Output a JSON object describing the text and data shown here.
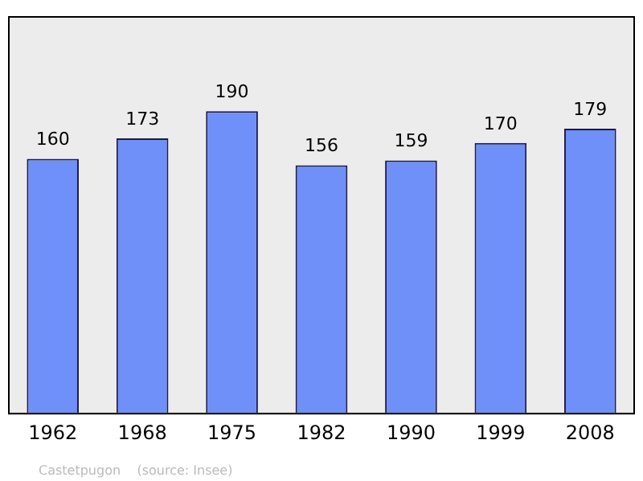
{
  "chart_data": {
    "type": "bar",
    "categories": [
      "1962",
      "1968",
      "1975",
      "1982",
      "1990",
      "1999",
      "2008"
    ],
    "values": [
      160,
      173,
      190,
      156,
      159,
      170,
      179
    ],
    "color": "#6f8ff9",
    "data_labels": true,
    "grid": false,
    "legend": false,
    "annotations": [
      "Castetpugon    (source: Insee)"
    ]
  }
}
